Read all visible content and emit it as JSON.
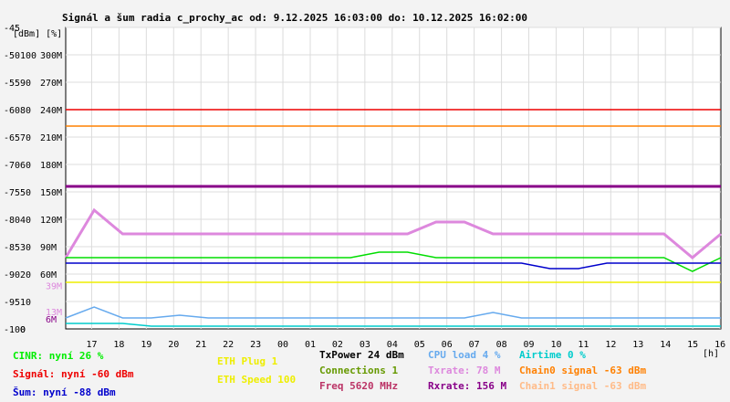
{
  "chart_data": {
    "type": "line",
    "title": "Signál a šum radia c_prochy_ac od: 9.12.2025 16:03:00 do: 10.12.2025 16:02:00",
    "ylabel_units": "[dBm] [%]",
    "xunit": "[h]",
    "x_ticks": [
      "17",
      "18",
      "19",
      "20",
      "21",
      "22",
      "23",
      "00",
      "01",
      "02",
      "03",
      "04",
      "05",
      "06",
      "07",
      "08",
      "09",
      "10",
      "11",
      "12",
      "13",
      "14",
      "15",
      "16"
    ],
    "x_range": [
      16.05,
      40.03
    ],
    "y_ticks_dbm": [
      -45,
      -50,
      -55,
      -60,
      -65,
      -70,
      -75,
      -80,
      -85,
      -90,
      -95,
      -100
    ],
    "y_ticks_pct": [
      "",
      "100",
      "90",
      "80",
      "70",
      "60",
      "50",
      "40",
      "30",
      "20",
      "10",
      "0"
    ],
    "y_ticks_rate": [
      "",
      "300M",
      "270M",
      "240M",
      "210M",
      "180M",
      "150M",
      "120M",
      "90M",
      "60M",
      "",
      ""
    ],
    "y_ticks_extra": [
      {
        "label": "39M",
        "color": "#dd88dd"
      },
      {
        "label": "13M",
        "color": "#dd88dd"
      },
      {
        "label": "6M",
        "color": "#880088"
      }
    ],
    "ylim_dbm": [
      -100,
      -45
    ],
    "series": [
      {
        "name": "Signál",
        "unit": "dBm",
        "color": "#ee0000",
        "values": [
          -60,
          -60,
          -60,
          -60,
          -60,
          -60,
          -60,
          -60,
          -60,
          -60,
          -60,
          -60,
          -60,
          -60,
          -60,
          -60,
          -60,
          -60,
          -60,
          -60,
          -60,
          -60,
          -60,
          -60
        ]
      },
      {
        "name": "Chain0 signal",
        "unit": "dBm",
        "color": "#ff8000",
        "values": [
          -63,
          -63,
          -63,
          -63,
          -63,
          -63,
          -63,
          -63,
          -63,
          -63,
          -63,
          -63,
          -63,
          -63,
          -63,
          -63,
          -63,
          -63,
          -63,
          -63,
          -63,
          -63,
          -63,
          -63
        ]
      },
      {
        "name": "Rxrate",
        "unit": "M",
        "color": "#880088",
        "values": [
          156,
          156,
          156,
          156,
          156,
          156,
          156,
          156,
          156,
          156,
          156,
          156,
          156,
          156,
          156,
          156,
          156,
          156,
          156,
          156,
          156,
          156,
          156,
          156
        ]
      },
      {
        "name": "Txrate",
        "unit": "M",
        "color": "#dd88dd",
        "values": [
          78,
          130,
          104,
          104,
          104,
          104,
          104,
          104,
          104,
          104,
          104,
          104,
          104,
          117,
          117,
          104,
          104,
          104,
          104,
          104,
          104,
          104,
          78,
          104
        ]
      },
      {
        "name": "CINR",
        "unit": "%",
        "color": "#00dd00",
        "values": [
          26,
          26,
          26,
          26,
          26,
          26,
          26,
          26,
          26,
          26,
          26,
          28,
          28,
          26,
          26,
          26,
          26,
          26,
          26,
          26,
          26,
          26,
          21,
          26
        ]
      },
      {
        "name": "Šum",
        "unit": "dBm",
        "color": "#0000cc",
        "values": [
          -88,
          -88,
          -88,
          -88,
          -88,
          -88,
          -88,
          -88,
          -88,
          -88,
          -88,
          -88,
          -88,
          -88,
          -88,
          -88,
          -88,
          -89,
          -89,
          -88,
          -88,
          -88,
          -88,
          -88
        ]
      },
      {
        "name": "CPU load",
        "unit": "%",
        "color": "#66aaee",
        "values": [
          4,
          8,
          4,
          4,
          5,
          4,
          4,
          4,
          4,
          4,
          4,
          4,
          4,
          4,
          4,
          6,
          4,
          4,
          4,
          4,
          4,
          4,
          4,
          4
        ]
      },
      {
        "name": "Airtime",
        "unit": "%",
        "color": "#00cccc",
        "values": [
          2,
          2,
          2,
          1,
          1,
          1,
          1,
          1,
          1,
          1,
          1,
          1,
          1,
          1,
          1,
          1,
          1,
          1,
          1,
          1,
          1,
          1,
          1,
          1
        ]
      },
      {
        "name": "ETH Speed",
        "unit": "",
        "color": "#eeee00",
        "values": [
          100,
          100,
          100,
          100,
          100,
          100,
          100,
          100,
          100,
          100,
          100,
          100,
          100,
          100,
          100,
          100,
          100,
          100,
          100,
          100,
          100,
          100,
          100,
          100
        ]
      }
    ],
    "grid": true
  },
  "legend": {
    "col1": [
      {
        "text": "CINR: nyní 26 %",
        "color": "#00ee00"
      },
      {
        "text": "Signál: nyní -60 dBm",
        "color": "#ee0000"
      },
      {
        "text": "Šum: nyní -88 dBm",
        "color": "#0000cc"
      }
    ],
    "col2": [
      {
        "text": "ETH Plug 1",
        "color": "#eeee00"
      },
      {
        "text": "ETH Speed 100",
        "color": "#eeee00"
      }
    ],
    "col3": [
      {
        "text": "TxPower 24 dBm",
        "color": "#000000"
      },
      {
        "text": "Connections 1",
        "color": "#669900"
      },
      {
        "text": "Freq 5620 MHz",
        "color": "#bb3366"
      }
    ],
    "col4": [
      {
        "text": "CPU load 4 %",
        "color": "#66aaee"
      },
      {
        "text": "Txrate: 78 M",
        "color": "#dd88dd"
      },
      {
        "text": "Rxrate: 156 M",
        "color": "#880088"
      }
    ],
    "col5": [
      {
        "text": "Airtime 0 %",
        "color": "#00cccc"
      },
      {
        "text": "Chain0 signal -63 dBm",
        "color": "#ff8000"
      },
      {
        "text": "Chain1 signal -63 dBm",
        "color": "#ffbb88"
      }
    ]
  }
}
